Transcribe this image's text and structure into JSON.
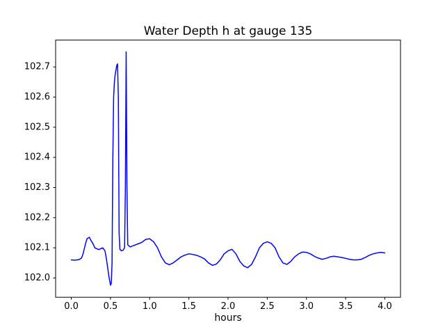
{
  "chart_data": {
    "type": "line",
    "title": "Water Depth h at gauge 135",
    "xlabel": "hours",
    "ylabel": "",
    "grid": false,
    "legend": null,
    "line_color": "#0000ff",
    "axis_color": "#000000",
    "xlim": [
      -0.2,
      4.2
    ],
    "ylim": [
      101.936,
      102.789
    ],
    "xticks": [
      0.0,
      0.5,
      1.0,
      1.5,
      2.0,
      2.5,
      3.0,
      3.5,
      4.0
    ],
    "xtick_labels": [
      "0.0",
      "0.5",
      "1.0",
      "1.5",
      "2.0",
      "2.5",
      "3.0",
      "3.5",
      "4.0"
    ],
    "yticks": [
      102.0,
      102.1,
      102.2,
      102.3,
      102.4,
      102.5,
      102.6,
      102.7
    ],
    "ytick_labels": [
      "102.0",
      "102.1",
      "102.2",
      "102.3",
      "102.4",
      "102.5",
      "102.6",
      "102.7"
    ],
    "series": [
      {
        "name": "h",
        "x": [
          0.0,
          0.05,
          0.1,
          0.13,
          0.15,
          0.18,
          0.2,
          0.23,
          0.25,
          0.28,
          0.3,
          0.35,
          0.4,
          0.43,
          0.45,
          0.48,
          0.5,
          0.51,
          0.52,
          0.53,
          0.54,
          0.55,
          0.56,
          0.58,
          0.59,
          0.6,
          0.61,
          0.62,
          0.64,
          0.66,
          0.68,
          0.69,
          0.7,
          0.71,
          0.72,
          0.75,
          0.8,
          0.85,
          0.9,
          0.95,
          1.0,
          1.05,
          1.1,
          1.15,
          1.2,
          1.25,
          1.3,
          1.35,
          1.4,
          1.45,
          1.5,
          1.55,
          1.6,
          1.65,
          1.7,
          1.75,
          1.8,
          1.85,
          1.9,
          1.95,
          2.0,
          2.05,
          2.1,
          2.15,
          2.2,
          2.25,
          2.3,
          2.35,
          2.4,
          2.45,
          2.5,
          2.55,
          2.6,
          2.65,
          2.7,
          2.75,
          2.8,
          2.85,
          2.9,
          2.95,
          3.0,
          3.05,
          3.1,
          3.15,
          3.2,
          3.25,
          3.3,
          3.35,
          3.4,
          3.45,
          3.5,
          3.55,
          3.6,
          3.65,
          3.7,
          3.75,
          3.8,
          3.85,
          3.9,
          3.95,
          4.0
        ],
        "y": [
          102.06,
          102.059,
          102.061,
          102.066,
          102.08,
          102.112,
          102.13,
          102.135,
          102.125,
          102.112,
          102.1,
          102.094,
          102.1,
          102.09,
          102.06,
          102.005,
          101.976,
          101.982,
          102.05,
          102.4,
          102.6,
          102.65,
          102.675,
          102.705,
          102.71,
          102.6,
          102.15,
          102.095,
          102.09,
          102.092,
          102.1,
          102.3,
          102.75,
          102.3,
          102.11,
          102.103,
          102.108,
          102.113,
          102.118,
          102.128,
          102.13,
          102.12,
          102.1,
          102.07,
          102.05,
          102.044,
          102.05,
          102.06,
          102.07,
          102.076,
          102.08,
          102.078,
          102.075,
          102.07,
          102.063,
          102.05,
          102.042,
          102.046,
          102.06,
          102.08,
          102.09,
          102.095,
          102.08,
          102.055,
          102.04,
          102.034,
          102.045,
          102.07,
          102.1,
          102.115,
          102.12,
          102.115,
          102.1,
          102.07,
          102.05,
          102.045,
          102.055,
          102.07,
          102.08,
          102.086,
          102.085,
          102.08,
          102.072,
          102.066,
          102.062,
          102.065,
          102.07,
          102.072,
          102.07,
          102.068,
          102.065,
          102.062,
          102.06,
          102.06,
          102.062,
          102.068,
          102.075,
          102.08,
          102.083,
          102.085,
          102.083
        ]
      }
    ]
  }
}
